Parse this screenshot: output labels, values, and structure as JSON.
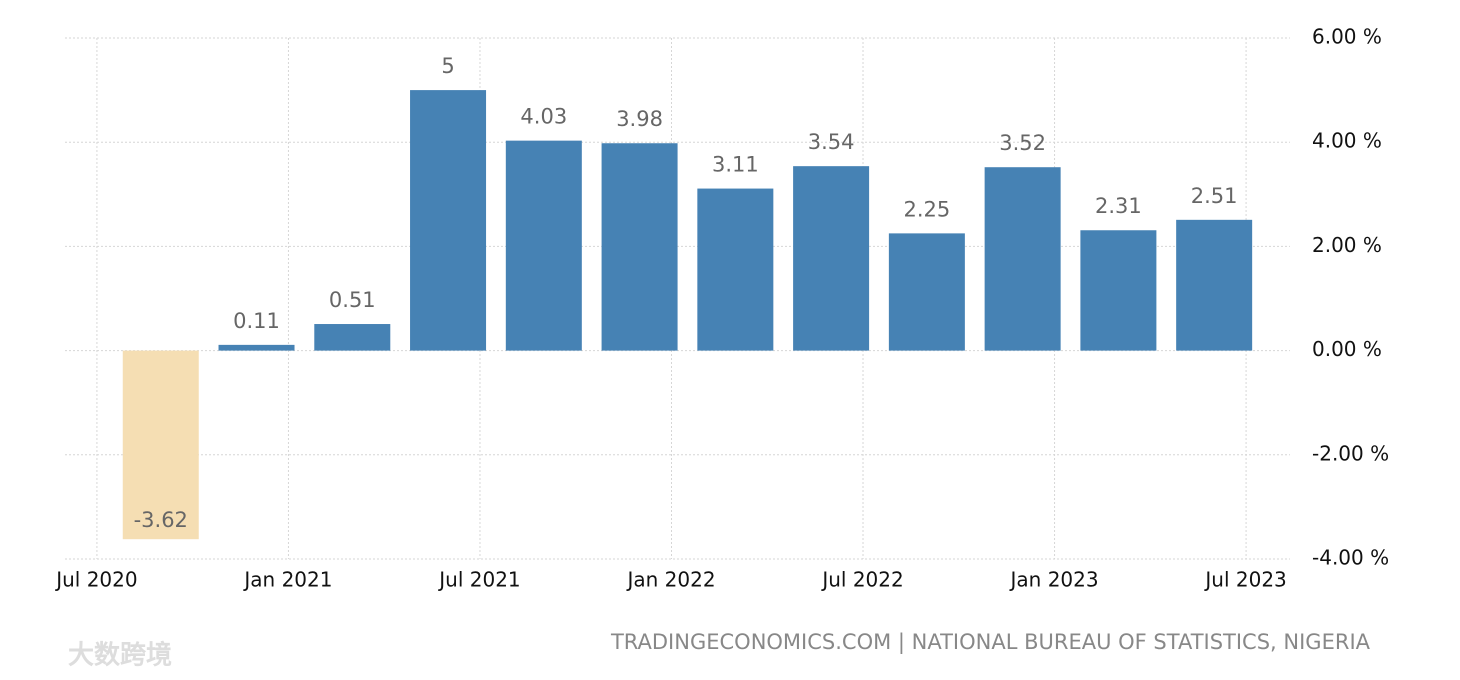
{
  "chart_data": {
    "type": "bar",
    "x": [
      "2020-09",
      "2020-12",
      "2021-03",
      "2021-06",
      "2021-09",
      "2021-12",
      "2022-03",
      "2022-06",
      "2022-09",
      "2022-12",
      "2023-03",
      "2023-06"
    ],
    "values": [
      -3.62,
      0.11,
      0.51,
      5,
      4.03,
      3.98,
      3.11,
      3.54,
      2.25,
      3.52,
      2.31,
      2.51
    ],
    "color": "#4682b4",
    "negative_color": "#f5deb3",
    "xlim": [
      "2020-06",
      "2023-08"
    ],
    "xticks": [
      {
        "value": "2020-07",
        "label": "Jul 2020"
      },
      {
        "value": "2021-01",
        "label": "Jan 2021"
      },
      {
        "value": "2021-07",
        "label": "Jul 2021"
      },
      {
        "value": "2022-01",
        "label": "Jan 2022"
      },
      {
        "value": "2022-07",
        "label": "Jul 2022"
      },
      {
        "value": "2023-01",
        "label": "Jan 2023"
      },
      {
        "value": "2023-07",
        "label": "Jul 2023"
      }
    ],
    "ylim": [
      -4,
      6
    ],
    "yticks": [
      {
        "value": 6,
        "label": "6.00 %"
      },
      {
        "value": 4,
        "label": "4.00 %"
      },
      {
        "value": 2,
        "label": "2.00 %"
      },
      {
        "value": 0,
        "label": "0.00 %"
      },
      {
        "value": -2,
        "label": "-2.00 %"
      },
      {
        "value": -4,
        "label": "-4.00 %"
      }
    ],
    "grid": true,
    "source": "TRADINGECONOMICS.COM | NATIONAL BUREAU OF STATISTICS, NIGERIA",
    "watermark": "大数跨境"
  }
}
